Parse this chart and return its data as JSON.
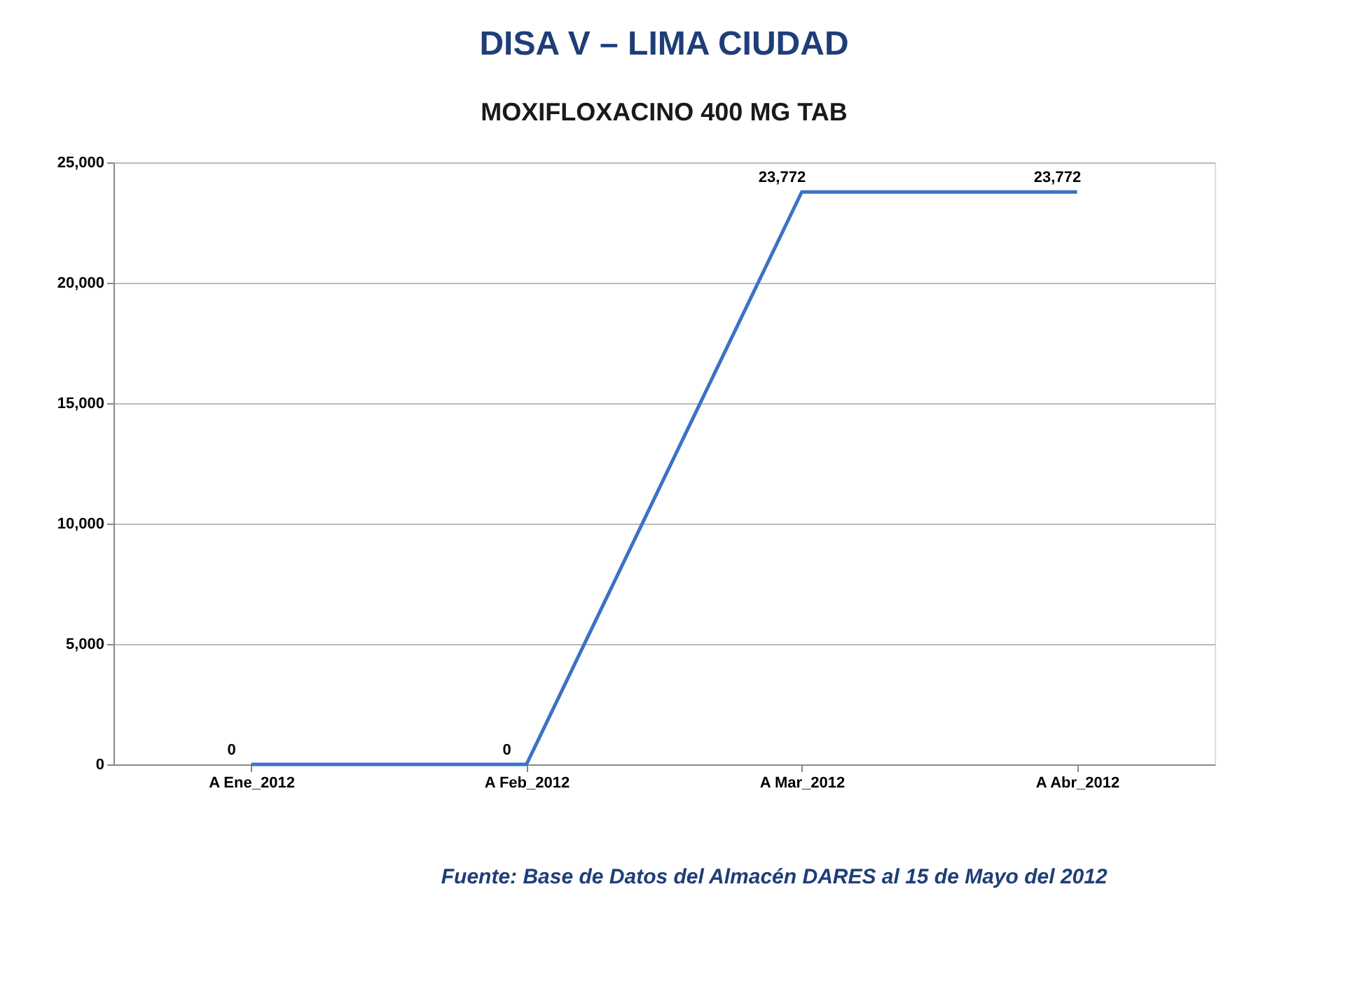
{
  "chart_data": {
    "type": "line",
    "title": "DISA V – LIMA CIUDAD",
    "subtitle": "MOXIFLOXACINO 400 MG TAB",
    "categories": [
      "A Ene_2012",
      "A Feb_2012",
      "A Mar_2012",
      "A Abr_2012"
    ],
    "series": [
      {
        "color": "#3c72c4",
        "values": [
          0,
          0,
          23772,
          23772
        ],
        "value_labels": [
          "0",
          "0",
          "23,772",
          "23,772"
        ]
      }
    ],
    "ylim": [
      0,
      25000
    ],
    "yticks": [
      0,
      {
        "value": 5000,
        "label": "5,000"
      },
      {
        "value": 10000,
        "label": "10,000"
      },
      {
        "value": 15000,
        "label": "15,000"
      },
      {
        "value": 20000,
        "label": "20,000"
      },
      {
        "value": 25000,
        "label": "25,000"
      }
    ],
    "grid": "y",
    "legend": false,
    "marker": "none",
    "line_style": "solid",
    "annotations": [
      "Fuente: Base de Datos del Almacén DARES al 15 de Mayo del 2012"
    ]
  }
}
